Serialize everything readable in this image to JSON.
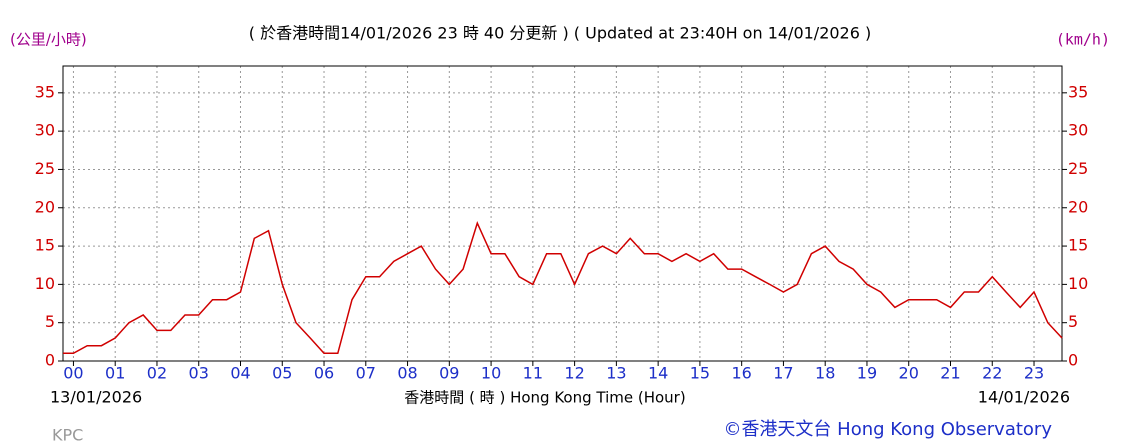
{
  "chart_data": {
    "type": "line",
    "title": "( 於香港時間14/01/2026 23 時 40 分更新 ) ( Updated at 23:40H on 14/01/2026 )",
    "y_label": "(公里/小時)",
    "y2_label": "(km/h)",
    "x_label": "香港時間 ( 時 ) Hong Kong Time (Hour)",
    "start_date": "13/01/2026",
    "end_date": "14/01/2026",
    "station": "KPC",
    "credit": "©香港天文台 Hong Kong Observatory",
    "color": "#d00000",
    "grid": true,
    "x": [
      -0.25,
      0,
      0.33,
      0.67,
      1,
      1.33,
      1.67,
      2,
      2.33,
      2.67,
      3,
      3.33,
      3.67,
      4,
      4.33,
      4.67,
      5,
      5.33,
      5.67,
      6,
      6.33,
      6.67,
      7,
      7.33,
      7.67,
      8,
      8.33,
      8.67,
      9,
      9.33,
      9.67,
      10,
      10.33,
      10.67,
      11,
      11.33,
      11.67,
      12,
      12.33,
      12.67,
      13,
      13.33,
      13.67,
      14,
      14.33,
      14.67,
      15,
      15.33,
      15.67,
      16,
      16.33,
      16.67,
      17,
      17.33,
      17.67,
      18,
      18.33,
      18.67,
      19,
      19.33,
      19.67,
      20,
      20.33,
      20.67,
      21,
      21.33,
      21.67,
      22,
      22.33,
      22.67,
      23,
      23.33,
      23.67
    ],
    "values": [
      1,
      1,
      2,
      2,
      3,
      5,
      6,
      4,
      4,
      6,
      6,
      8,
      8,
      9,
      16,
      17,
      10,
      5,
      3,
      1,
      1,
      8,
      11,
      11,
      13,
      14,
      15,
      12,
      10,
      12,
      18,
      14,
      14,
      11,
      10,
      14,
      14,
      10,
      14,
      15,
      14,
      16,
      14,
      14,
      13,
      14,
      13,
      14,
      12,
      12,
      11,
      10,
      9,
      10,
      14,
      15,
      13,
      12,
      10,
      9,
      7,
      8,
      8,
      8,
      7,
      9,
      9,
      11,
      9,
      7,
      9,
      5,
      3
    ],
    "xlim": [
      -0.25,
      23.67
    ],
    "xticks": [
      {
        "value": 0,
        "label": "00"
      },
      {
        "value": 1,
        "label": "01"
      },
      {
        "value": 2,
        "label": "02"
      },
      {
        "value": 3,
        "label": "03"
      },
      {
        "value": 4,
        "label": "04"
      },
      {
        "value": 5,
        "label": "05"
      },
      {
        "value": 6,
        "label": "06"
      },
      {
        "value": 7,
        "label": "07"
      },
      {
        "value": 8,
        "label": "08"
      },
      {
        "value": 9,
        "label": "09"
      },
      {
        "value": 10,
        "label": "10"
      },
      {
        "value": 11,
        "label": "11"
      },
      {
        "value": 12,
        "label": "12"
      },
      {
        "value": 13,
        "label": "13"
      },
      {
        "value": 14,
        "label": "14"
      },
      {
        "value": 15,
        "label": "15"
      },
      {
        "value": 16,
        "label": "16"
      },
      {
        "value": 17,
        "label": "17"
      },
      {
        "value": 18,
        "label": "18"
      },
      {
        "value": 19,
        "label": "19"
      },
      {
        "value": 20,
        "label": "20"
      },
      {
        "value": 21,
        "label": "21"
      },
      {
        "value": 22,
        "label": "22"
      },
      {
        "value": 23,
        "label": "23"
      }
    ],
    "ylim": [
      0,
      38.5
    ],
    "yticks": [
      0,
      5,
      10,
      15,
      20,
      25,
      30,
      35
    ],
    "y2lim": [
      0,
      38.5
    ],
    "y2ticks": [
      0,
      5,
      10,
      15,
      20,
      25,
      30,
      35
    ]
  }
}
